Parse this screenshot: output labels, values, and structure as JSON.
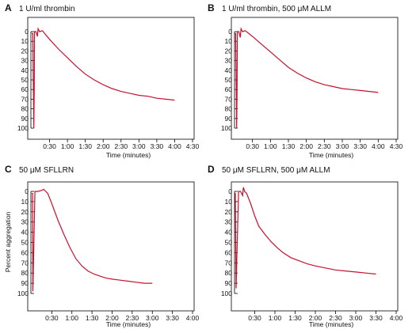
{
  "colors": {
    "trace": "#c8102e",
    "axis": "#000000",
    "frame": "#333333"
  },
  "chart_data": [
    {
      "type": "line",
      "panel_letter": "A",
      "title": "1 U/ml thrombin",
      "xlabel": "Time (minutes)",
      "ylabel": "",
      "x_ticks": [
        "0:30",
        "1:00",
        "1:30",
        "2:00",
        "2:30",
        "3:00",
        "3:30",
        "4:00",
        "4:30"
      ],
      "y_ticks": [
        "0",
        "10",
        "20",
        "30",
        "40",
        "50",
        "60",
        "70",
        "80",
        "90",
        "100"
      ],
      "xlim": [
        0,
        4.5
      ],
      "ylim": [
        100,
        0
      ],
      "series": [
        {
          "x": [
            0,
            0.03,
            0.06,
            0.07,
            0.08,
            0.12,
            0.16,
            0.18,
            0.22,
            0.3,
            0.5,
            0.75,
            1.0,
            1.25,
            1.5,
            1.75,
            2.0,
            2.25,
            2.5,
            2.75,
            3.0,
            3.25,
            3.5,
            3.75,
            4.0
          ],
          "y": [
            2,
            2,
            100,
            60,
            0,
            0,
            5,
            -3,
            0,
            -1,
            8,
            18,
            27,
            36,
            44,
            50,
            55,
            59,
            62,
            64,
            66,
            67,
            69,
            70,
            71
          ]
        }
      ]
    },
    {
      "type": "line",
      "panel_letter": "B",
      "title": "1 U/ml thrombin, 500 μM ALLM",
      "xlabel": "Time (minutes)",
      "ylabel": "",
      "x_ticks": [
        "0:30",
        "1:00",
        "1:30",
        "2:00",
        "2:30",
        "3:00",
        "3:30",
        "4:00",
        "4:30"
      ],
      "y_ticks": [
        "0",
        "10",
        "20",
        "30",
        "40",
        "50",
        "60",
        "70",
        "80",
        "90",
        "100"
      ],
      "xlim": [
        0,
        4.5
      ],
      "ylim": [
        100,
        0
      ],
      "series": [
        {
          "x": [
            0,
            0.03,
            0.06,
            0.07,
            0.08,
            0.12,
            0.16,
            0.18,
            0.22,
            0.3,
            0.5,
            0.75,
            1.0,
            1.25,
            1.5,
            1.75,
            2.0,
            2.25,
            2.5,
            2.75,
            3.0,
            3.25,
            3.5,
            3.75,
            4.0
          ],
          "y": [
            2,
            2,
            100,
            60,
            0,
            0,
            6,
            -3,
            0,
            -1,
            5,
            13,
            21,
            29,
            37,
            43,
            48,
            52,
            55,
            57,
            59,
            60,
            61,
            62,
            63
          ]
        }
      ]
    },
    {
      "type": "line",
      "panel_letter": "C",
      "title": "50 μM SFLLRN",
      "xlabel": "Time (minutes)",
      "ylabel": "Percent aggregation",
      "x_ticks": [
        "0:30",
        "1:00",
        "1:30",
        "2:00",
        "2:30",
        "3:00",
        "3:30",
        "4:00"
      ],
      "y_ticks": [
        "0",
        "10",
        "20",
        "30",
        "40",
        "50",
        "60",
        "70",
        "80",
        "90",
        "100"
      ],
      "xlim": [
        0,
        4.0
      ],
      "ylim": [
        100,
        0
      ],
      "series": [
        {
          "x": [
            0,
            0.02,
            0.03,
            0.05,
            0.08,
            0.15,
            0.25,
            0.3,
            0.35,
            0.4,
            0.5,
            0.65,
            0.8,
            0.95,
            1.1,
            1.25,
            1.4,
            1.55,
            1.7,
            1.85,
            2.0,
            2.2,
            2.4,
            2.6,
            2.8,
            3.0
          ],
          "y": [
            2,
            2,
            98,
            60,
            0,
            0,
            -1,
            -2,
            0,
            2,
            12,
            28,
            42,
            55,
            66,
            73,
            78,
            81,
            83,
            85,
            86,
            87,
            88,
            89,
            90,
            90
          ]
        }
      ]
    },
    {
      "type": "line",
      "panel_letter": "D",
      "title": "50 μM SFLLRN, 500 μM ALLM",
      "xlabel": "Time (minutes)",
      "ylabel": "",
      "x_ticks": [
        "0:30",
        "1:00",
        "1:30",
        "2:00",
        "2:30",
        "3:00",
        "3:30",
        "4:00"
      ],
      "y_ticks": [
        "0",
        "10",
        "20",
        "30",
        "40",
        "50",
        "60",
        "70",
        "80",
        "90",
        "100"
      ],
      "xlim": [
        0,
        4.0
      ],
      "ylim": [
        100,
        0
      ],
      "series": [
        {
          "x": [
            0,
            0.02,
            0.04,
            0.06,
            0.1,
            0.15,
            0.2,
            0.22,
            0.25,
            0.3,
            0.4,
            0.5,
            0.6,
            0.75,
            0.9,
            1.05,
            1.2,
            1.4,
            1.6,
            1.8,
            2.0,
            2.25,
            2.5,
            2.75,
            3.0,
            3.25,
            3.5
          ],
          "y": [
            2,
            2,
            95,
            60,
            0,
            0,
            4,
            -4,
            0,
            2,
            12,
            24,
            34,
            42,
            49,
            55,
            60,
            65,
            68,
            71,
            73,
            75,
            77,
            78,
            79,
            80,
            81
          ]
        }
      ]
    }
  ]
}
